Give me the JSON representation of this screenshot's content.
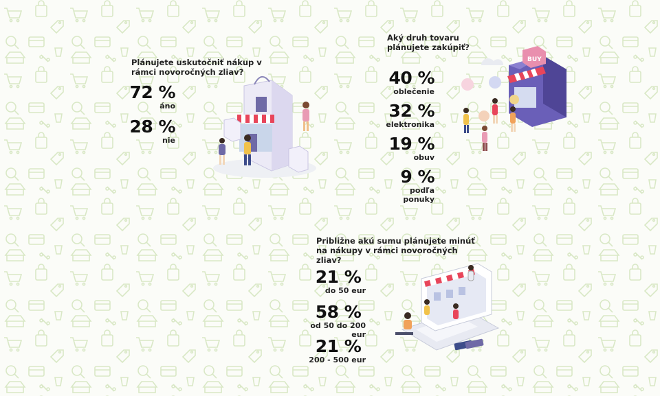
{
  "survey1": {
    "question": "Plánujete uskutočniť nákup v rámci novoročných zliav?",
    "answers": [
      {
        "pct": "72 %",
        "label": "áno"
      },
      {
        "pct": "28 %",
        "label": "nie"
      }
    ]
  },
  "survey2": {
    "question": "Aký druh tovaru plánujete zakúpiť?",
    "answers": [
      {
        "pct": "40 %",
        "label": "oblečenie"
      },
      {
        "pct": "32 %",
        "label": "elektronika"
      },
      {
        "pct": "19 %",
        "label": "obuv"
      },
      {
        "pct": "9 %",
        "label": "podľa ponuky"
      }
    ]
  },
  "survey3": {
    "question": "Približne akú sumu plánujete minúť na nákupy v rámci novoročných zliav?",
    "answers": [
      {
        "pct": "21 %",
        "label": "do 50 eur"
      },
      {
        "pct": "58 %",
        "label": "od 50 do 200 eur"
      },
      {
        "pct": "21 %",
        "label": "200 - 500 eur"
      }
    ]
  },
  "illustrations": {
    "store_sign": "BUY"
  },
  "colors": {
    "background": "#fbfcf8",
    "pattern": "#dbe9c9",
    "text": "#111111",
    "accent_red": "#e8455a",
    "accent_purple": "#5b4fa8"
  }
}
